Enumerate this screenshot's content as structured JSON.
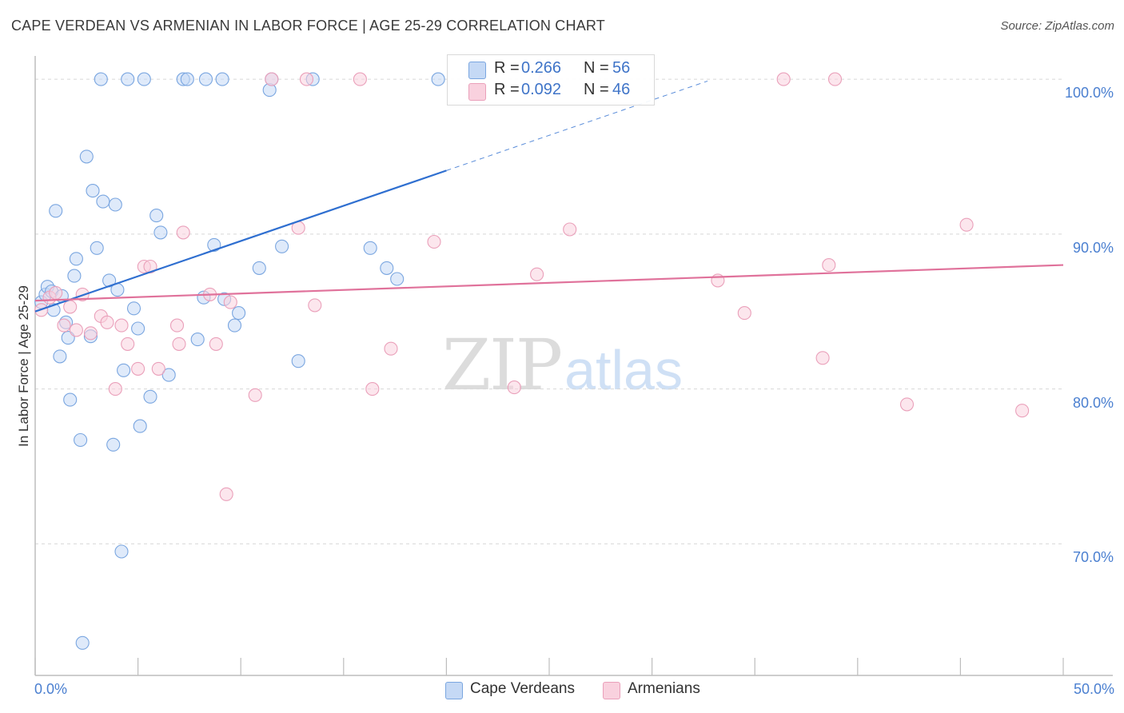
{
  "title": "CAPE VERDEAN VS ARMENIAN IN LABOR FORCE | AGE 25-29 CORRELATION CHART",
  "source": "Source: ZipAtlas.com",
  "watermark": {
    "zip": "ZIP",
    "atlas": "atlas"
  },
  "colors": {
    "blue_fill": "#c5d9f5",
    "blue_stroke": "#7aa6e0",
    "blue_line": "#2f6fd0",
    "pink_fill": "#f9d1de",
    "pink_stroke": "#eaa0ba",
    "pink_line": "#e0729b",
    "tick_text": "#4a7fd0",
    "grid": "#d8d8d8"
  },
  "legend": {
    "rows": [
      {
        "r_label": "R =",
        "r_value": "0.266",
        "n_label": "N =",
        "n_value": "56"
      },
      {
        "r_label": "R =",
        "r_value": "0.092",
        "n_label": "N =",
        "n_value": "46"
      }
    ]
  },
  "bottom_legend": {
    "series": [
      "Cape Verdeans",
      "Armenians"
    ]
  },
  "chart_data": {
    "type": "scatter",
    "title": "CAPE VERDEAN VS ARMENIAN IN LABOR FORCE | AGE 25-29 CORRELATION CHART",
    "xlabel": "",
    "ylabel": "In Labor Force | Age 25-29",
    "xlim": [
      0,
      50
    ],
    "ylim": [
      61.5,
      101.5
    ],
    "x_tick_labels": [
      "0.0%",
      "50.0%"
    ],
    "y_ticks": [
      70,
      80,
      90,
      100
    ],
    "y_tick_labels": [
      "70.0%",
      "80.0%",
      "90.0%",
      "100.0%"
    ],
    "grid": true,
    "legend_position": "top-center",
    "series": [
      {
        "name": "Cape Verdeans",
        "color": "#7aa6e0",
        "points": [
          [
            0.3,
            85.6
          ],
          [
            0.5,
            86.1
          ],
          [
            0.6,
            86.6
          ],
          [
            0.8,
            86.3
          ],
          [
            0.9,
            85.1
          ],
          [
            1.0,
            91.5
          ],
          [
            1.2,
            82.1
          ],
          [
            1.3,
            86.0
          ],
          [
            1.5,
            84.3
          ],
          [
            1.6,
            83.3
          ],
          [
            1.7,
            79.3
          ],
          [
            1.9,
            87.3
          ],
          [
            2.0,
            88.4
          ],
          [
            2.2,
            76.7
          ],
          [
            2.3,
            63.6
          ],
          [
            2.5,
            95.0
          ],
          [
            2.7,
            83.4
          ],
          [
            2.8,
            92.8
          ],
          [
            3.0,
            89.1
          ],
          [
            3.2,
            100.0
          ],
          [
            3.3,
            92.1
          ],
          [
            3.6,
            87.0
          ],
          [
            3.8,
            76.4
          ],
          [
            3.9,
            91.9
          ],
          [
            4.0,
            86.4
          ],
          [
            4.2,
            69.5
          ],
          [
            4.3,
            81.2
          ],
          [
            4.5,
            100.0
          ],
          [
            4.8,
            85.2
          ],
          [
            5.0,
            83.9
          ],
          [
            5.1,
            77.6
          ],
          [
            5.3,
            100.0
          ],
          [
            5.6,
            79.5
          ],
          [
            5.9,
            91.2
          ],
          [
            6.1,
            90.1
          ],
          [
            6.5,
            80.9
          ],
          [
            7.2,
            100.0
          ],
          [
            7.4,
            100.0
          ],
          [
            7.9,
            83.2
          ],
          [
            8.2,
            85.9
          ],
          [
            8.3,
            100.0
          ],
          [
            8.7,
            89.3
          ],
          [
            9.1,
            100.0
          ],
          [
            9.2,
            85.8
          ],
          [
            9.7,
            84.1
          ],
          [
            9.9,
            84.9
          ],
          [
            10.9,
            87.8
          ],
          [
            11.4,
            99.3
          ],
          [
            11.5,
            100.0
          ],
          [
            12.0,
            89.2
          ],
          [
            12.8,
            81.8
          ],
          [
            13.5,
            100.0
          ],
          [
            16.3,
            89.1
          ],
          [
            17.1,
            87.8
          ],
          [
            17.6,
            87.1
          ],
          [
            19.6,
            100.0
          ]
        ]
      },
      {
        "name": "Armenians",
        "color": "#eaa0ba",
        "points": [
          [
            0.3,
            85.1
          ],
          [
            0.7,
            85.9
          ],
          [
            1.0,
            86.2
          ],
          [
            1.4,
            84.1
          ],
          [
            1.7,
            85.3
          ],
          [
            2.0,
            83.8
          ],
          [
            2.3,
            86.1
          ],
          [
            2.7,
            83.6
          ],
          [
            3.2,
            84.7
          ],
          [
            3.5,
            84.3
          ],
          [
            3.9,
            80.0
          ],
          [
            4.2,
            84.1
          ],
          [
            4.5,
            82.9
          ],
          [
            5.0,
            81.3
          ],
          [
            5.3,
            87.9
          ],
          [
            5.6,
            87.9
          ],
          [
            6.0,
            81.3
          ],
          [
            6.9,
            84.1
          ],
          [
            7.0,
            82.9
          ],
          [
            7.2,
            90.1
          ],
          [
            8.5,
            86.1
          ],
          [
            8.8,
            82.9
          ],
          [
            9.3,
            73.2
          ],
          [
            9.5,
            85.6
          ],
          [
            10.7,
            79.6
          ],
          [
            11.5,
            100.0
          ],
          [
            12.8,
            90.4
          ],
          [
            13.2,
            100.0
          ],
          [
            13.6,
            85.4
          ],
          [
            15.8,
            100.0
          ],
          [
            16.4,
            80.0
          ],
          [
            17.3,
            82.6
          ],
          [
            19.4,
            89.5
          ],
          [
            23.3,
            80.1
          ],
          [
            24.4,
            87.4
          ],
          [
            24.8,
            100.0
          ],
          [
            26.0,
            90.3
          ],
          [
            33.2,
            87.0
          ],
          [
            34.5,
            84.9
          ],
          [
            36.4,
            100.0
          ],
          [
            38.3,
            82.0
          ],
          [
            38.6,
            88.0
          ],
          [
            38.9,
            100.0
          ],
          [
            42.4,
            79.0
          ],
          [
            45.3,
            90.6
          ],
          [
            48.0,
            78.6
          ]
        ]
      }
    ],
    "trendlines": [
      {
        "series": "Cape Verdeans",
        "x": [
          0,
          20
        ],
        "y": [
          85.0,
          94.1
        ],
        "dashed_extension_to_x": 32.7
      },
      {
        "series": "Armenians",
        "x": [
          0,
          50
        ],
        "y": [
          85.7,
          88.0
        ]
      }
    ]
  }
}
